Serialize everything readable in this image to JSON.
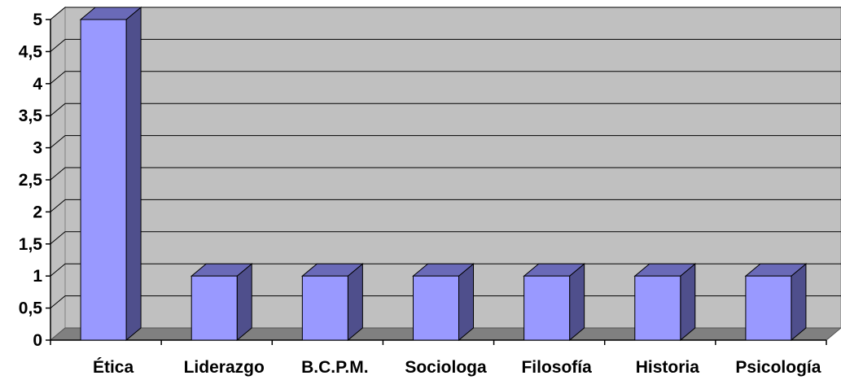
{
  "chart_data": {
    "type": "bar",
    "title": "",
    "xlabel": "",
    "ylabel": "",
    "categories": [
      "Ética",
      "Liderazgo",
      "B.C.P.M.",
      "Sociologa",
      "Filosofía",
      "Historia",
      "Psicología"
    ],
    "values": [
      5,
      1,
      1,
      1,
      1,
      1,
      1
    ],
    "ylim": [
      0,
      5
    ],
    "yticks": [
      "0",
      "0,5",
      "1",
      "1,5",
      "2",
      "2,5",
      "3",
      "3,5",
      "4",
      "4,5",
      "5"
    ],
    "grid": true,
    "legend": "none",
    "style": "3d-column"
  },
  "colors": {
    "bar_front": "#9999ff",
    "bar_side": "#4f4f8c",
    "bar_top": "#6a6ab8",
    "wall": "#c0c0c0",
    "floor": "#808080",
    "gridline": "#000000"
  }
}
